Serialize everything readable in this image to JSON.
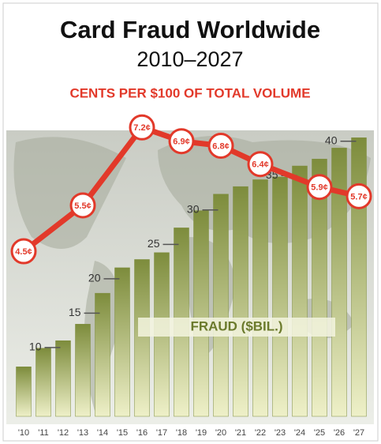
{
  "chart_data": {
    "type": "bar",
    "title": "Card Fraud Worldwide",
    "subtitle": "2010–2027",
    "y2_label": "CENTS PER $100 OF TOTAL VOLUME",
    "bar_label": "FRAUD ($BIL.)",
    "categories": [
      "'10",
      "'11",
      "'12",
      "'13",
      "'14",
      "'15",
      "'16",
      "'17",
      "'18",
      "'19",
      "'20",
      "'21",
      "'22",
      "'23",
      "'24",
      "'25",
      "'26",
      "'27"
    ],
    "values": [
      7.2,
      9.9,
      11.0,
      13.4,
      17.9,
      21.6,
      22.8,
      23.8,
      27.4,
      29.9,
      32.3,
      33.4,
      34.4,
      34.8,
      36.4,
      37.4,
      39.0,
      40.5
    ],
    "color": "#7d8c3c",
    "ylim": [
      0,
      41
    ],
    "yticks": [
      10,
      15,
      20,
      25,
      30,
      35,
      40
    ],
    "line": {
      "type": "line",
      "axis": "y2",
      "color": "#e2392a",
      "categories": [
        "'10",
        "'13",
        "'16",
        "'18",
        "'20",
        "'22",
        "'25",
        "'27"
      ],
      "values": [
        4.5,
        5.5,
        7.2,
        6.9,
        6.8,
        6.4,
        5.9,
        5.7
      ],
      "value_labels": [
        "4.5¢",
        "5.5¢",
        "7.2¢",
        "6.9¢",
        "6.8¢",
        "6.4¢",
        "5.9¢",
        "5.7¢"
      ]
    },
    "y2lim": [
      0.9,
      7.05
    ]
  }
}
